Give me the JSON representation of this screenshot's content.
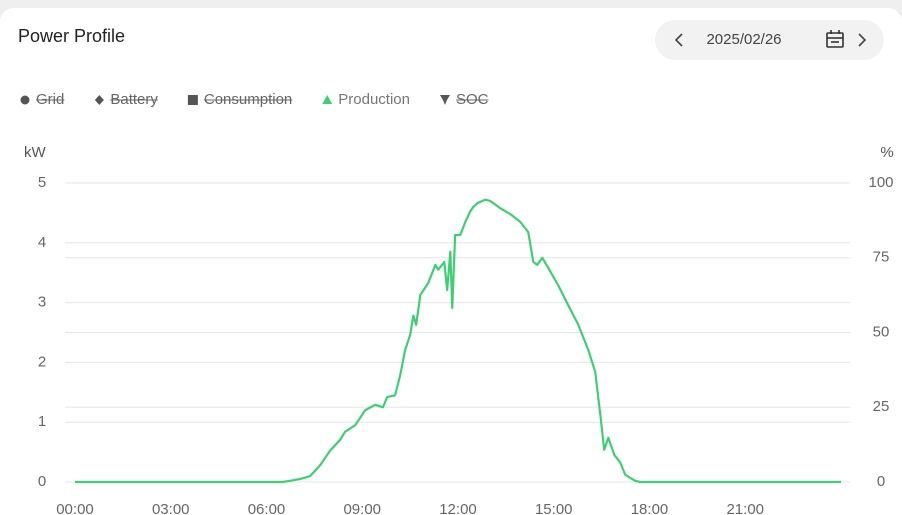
{
  "chart_data": {
    "type": "line",
    "title": "Power Profile",
    "date": "2025/02/26",
    "legend": [
      {
        "name": "Grid",
        "marker": "circle",
        "enabled": false
      },
      {
        "name": "Battery",
        "marker": "diamond",
        "enabled": false
      },
      {
        "name": "Consumption",
        "marker": "square",
        "enabled": false
      },
      {
        "name": "Production",
        "marker": "triangle",
        "enabled": true,
        "color": "#3ecf74"
      },
      {
        "name": "SOC",
        "marker": "pin",
        "enabled": false
      }
    ],
    "y_unit": "kW",
    "y2_unit": "%",
    "xlim": [
      0,
      24
    ],
    "xticks": [
      {
        "value": 0,
        "label": "00:00"
      },
      {
        "value": 3,
        "label": "03:00"
      },
      {
        "value": 6,
        "label": "06:00"
      },
      {
        "value": 9,
        "label": "09:00"
      },
      {
        "value": 12,
        "label": "12:00"
      },
      {
        "value": 15,
        "label": "15:00"
      },
      {
        "value": 18,
        "label": "18:00"
      },
      {
        "value": 21,
        "label": "21:00"
      }
    ],
    "ylim": [
      0,
      5
    ],
    "yticks": [
      0,
      1,
      2,
      3,
      4,
      5
    ],
    "y2lim": [
      0,
      100
    ],
    "y2ticks": [
      0,
      25,
      50,
      75,
      100
    ],
    "grid": true,
    "series": [
      {
        "color": "#3ecf74",
        "x": [
          0,
          6.5,
          6.74,
          7.05,
          7.37,
          7.68,
          8.0,
          8.3,
          8.46,
          8.78,
          9.09,
          9.4,
          9.65,
          9.78,
          10.03,
          10.19,
          10.34,
          10.5,
          10.6,
          10.69,
          10.82,
          11.07,
          11.29,
          11.38,
          11.57,
          11.66,
          11.76,
          11.82,
          11.91,
          12.07,
          12.23,
          12.38,
          12.48,
          12.63,
          12.85,
          13.01,
          13.32,
          13.64,
          13.95,
          14.2,
          14.36,
          14.48,
          14.64,
          14.83,
          15.14,
          15.45,
          15.77,
          16.08,
          16.3,
          16.46,
          16.58,
          16.71,
          16.9,
          17.08,
          17.24,
          17.55,
          17.71,
          24
        ],
        "values": [
          0,
          0,
          0.02,
          0.05,
          0.1,
          0.28,
          0.53,
          0.7,
          0.84,
          0.95,
          1.2,
          1.29,
          1.25,
          1.42,
          1.45,
          1.79,
          2.2,
          2.46,
          2.78,
          2.63,
          3.13,
          3.33,
          3.63,
          3.55,
          3.68,
          3.21,
          3.85,
          2.91,
          4.13,
          4.13,
          4.35,
          4.52,
          4.6,
          4.67,
          4.72,
          4.7,
          4.58,
          4.48,
          4.35,
          4.18,
          3.68,
          3.63,
          3.75,
          3.58,
          3.29,
          2.96,
          2.63,
          2.21,
          1.84,
          1.12,
          0.54,
          0.74,
          0.45,
          0.33,
          0.12,
          0.02,
          0,
          0
        ]
      }
    ]
  }
}
